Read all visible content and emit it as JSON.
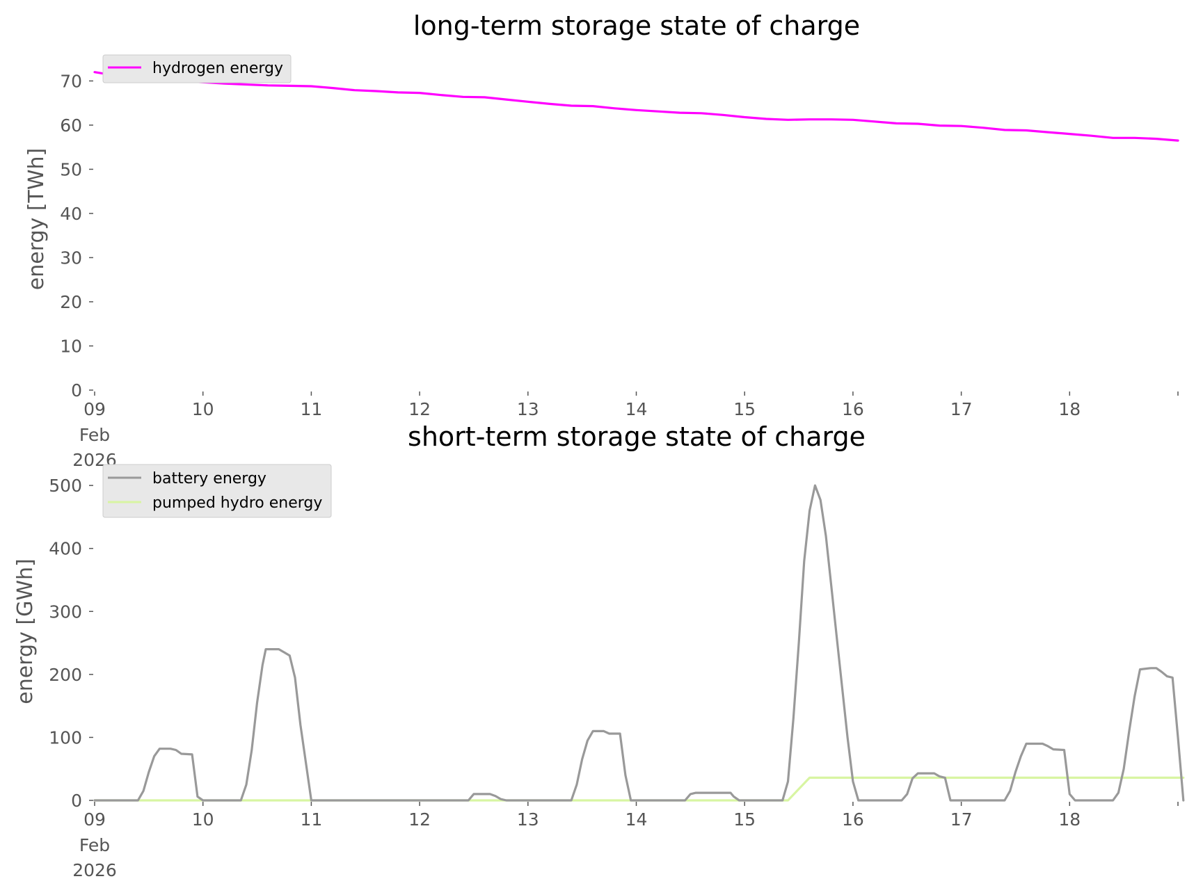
{
  "chart_data": [
    {
      "type": "line",
      "title": "long-term storage state of charge",
      "ylabel": "energy [TWh]",
      "xlabel": "",
      "x_ticks": [
        {
          "day": 9,
          "label": "09",
          "month_label": "Feb",
          "year_label": "2026"
        },
        {
          "day": 10,
          "label": "10"
        },
        {
          "day": 11,
          "label": "11"
        },
        {
          "day": 12,
          "label": "12"
        },
        {
          "day": 13,
          "label": "13"
        },
        {
          "day": 14,
          "label": "14"
        },
        {
          "day": 15,
          "label": "15"
        },
        {
          "day": 16,
          "label": "16"
        },
        {
          "day": 17,
          "label": "17"
        },
        {
          "day": 18,
          "label": "18"
        }
      ],
      "xlim_days": [
        9,
        19
      ],
      "ylim": [
        0,
        74
      ],
      "y_ticks": [
        0,
        10,
        20,
        30,
        40,
        50,
        60,
        70
      ],
      "legend_position": "upper left",
      "grid": false,
      "series": [
        {
          "name": "hydrogen energy",
          "color": "#ff00ff",
          "points": [
            [
              9.0,
              72.0
            ],
            [
              9.2,
              71.2
            ],
            [
              9.4,
              70.7
            ],
            [
              9.6,
              70.4
            ],
            [
              9.8,
              70.0
            ],
            [
              10.0,
              69.7
            ],
            [
              10.2,
              69.4
            ],
            [
              10.4,
              69.2
            ],
            [
              10.6,
              69.0
            ],
            [
              10.8,
              68.9
            ],
            [
              11.0,
              68.8
            ],
            [
              11.2,
              68.4
            ],
            [
              11.4,
              67.9
            ],
            [
              11.6,
              67.7
            ],
            [
              11.8,
              67.4
            ],
            [
              12.0,
              67.3
            ],
            [
              12.2,
              66.8
            ],
            [
              12.4,
              66.4
            ],
            [
              12.6,
              66.3
            ],
            [
              12.8,
              65.8
            ],
            [
              13.0,
              65.3
            ],
            [
              13.2,
              64.8
            ],
            [
              13.4,
              64.4
            ],
            [
              13.6,
              64.3
            ],
            [
              13.8,
              63.8
            ],
            [
              14.0,
              63.4
            ],
            [
              14.2,
              63.1
            ],
            [
              14.4,
              62.8
            ],
            [
              14.6,
              62.7
            ],
            [
              14.8,
              62.3
            ],
            [
              15.0,
              61.8
            ],
            [
              15.2,
              61.4
            ],
            [
              15.4,
              61.2
            ],
            [
              15.6,
              61.3
            ],
            [
              15.8,
              61.3
            ],
            [
              16.0,
              61.2
            ],
            [
              16.2,
              60.8
            ],
            [
              16.4,
              60.4
            ],
            [
              16.6,
              60.3
            ],
            [
              16.8,
              59.9
            ],
            [
              17.0,
              59.8
            ],
            [
              17.2,
              59.4
            ],
            [
              17.4,
              58.9
            ],
            [
              17.6,
              58.8
            ],
            [
              17.8,
              58.4
            ],
            [
              18.0,
              58.0
            ],
            [
              18.2,
              57.6
            ],
            [
              18.4,
              57.1
            ],
            [
              18.6,
              57.1
            ],
            [
              18.8,
              56.9
            ],
            [
              19.0,
              56.5
            ]
          ]
        }
      ]
    },
    {
      "type": "line",
      "title": "short-term storage state of charge",
      "ylabel": "energy [GWh]",
      "xlabel": "",
      "x_ticks": [
        {
          "day": 9,
          "label": "09",
          "month_label": "Feb",
          "year_label": "2026"
        },
        {
          "day": 10,
          "label": "10"
        },
        {
          "day": 11,
          "label": "11"
        },
        {
          "day": 12,
          "label": "12"
        },
        {
          "day": 13,
          "label": "13"
        },
        {
          "day": 14,
          "label": "14"
        },
        {
          "day": 15,
          "label": "15"
        },
        {
          "day": 16,
          "label": "16"
        },
        {
          "day": 17,
          "label": "17"
        },
        {
          "day": 18,
          "label": "18"
        }
      ],
      "xlim_days": [
        9,
        19
      ],
      "ylim": [
        0,
        520
      ],
      "y_ticks": [
        0,
        100,
        200,
        300,
        400,
        500
      ],
      "legend_position": "upper left",
      "grid": false,
      "series": [
        {
          "name": "battery energy",
          "color": "#999999",
          "points": [
            [
              9.0,
              0
            ],
            [
              9.4,
              0
            ],
            [
              9.45,
              15
            ],
            [
              9.5,
              45
            ],
            [
              9.55,
              70
            ],
            [
              9.6,
              82
            ],
            [
              9.7,
              82
            ],
            [
              9.75,
              80
            ],
            [
              9.8,
              74
            ],
            [
              9.9,
              73
            ],
            [
              9.95,
              6
            ],
            [
              10.0,
              0
            ],
            [
              10.35,
              0
            ],
            [
              10.4,
              25
            ],
            [
              10.45,
              80
            ],
            [
              10.5,
              155
            ],
            [
              10.55,
              215
            ],
            [
              10.58,
              240
            ],
            [
              10.7,
              240
            ],
            [
              10.75,
              235
            ],
            [
              10.8,
              230
            ],
            [
              10.85,
              195
            ],
            [
              10.9,
              120
            ],
            [
              10.95,
              60
            ],
            [
              11.0,
              0
            ],
            [
              12.45,
              0
            ],
            [
              12.5,
              10
            ],
            [
              12.65,
              10
            ],
            [
              12.7,
              7
            ],
            [
              12.75,
              2
            ],
            [
              12.8,
              0
            ],
            [
              13.4,
              0
            ],
            [
              13.45,
              25
            ],
            [
              13.5,
              65
            ],
            [
              13.55,
              95
            ],
            [
              13.6,
              110
            ],
            [
              13.7,
              110
            ],
            [
              13.75,
              106
            ],
            [
              13.85,
              106
            ],
            [
              13.9,
              40
            ],
            [
              13.95,
              0
            ],
            [
              14.45,
              0
            ],
            [
              14.5,
              10
            ],
            [
              14.55,
              12
            ],
            [
              14.87,
              12
            ],
            [
              14.9,
              6
            ],
            [
              14.95,
              0
            ],
            [
              15.35,
              0
            ],
            [
              15.4,
              30
            ],
            [
              15.45,
              130
            ],
            [
              15.5,
              250
            ],
            [
              15.55,
              380
            ],
            [
              15.6,
              460
            ],
            [
              15.65,
              500
            ],
            [
              15.7,
              477
            ],
            [
              15.75,
              420
            ],
            [
              15.8,
              340
            ],
            [
              15.85,
              260
            ],
            [
              15.9,
              180
            ],
            [
              15.95,
              100
            ],
            [
              16.0,
              30
            ],
            [
              16.05,
              0
            ],
            [
              16.45,
              0
            ],
            [
              16.5,
              10
            ],
            [
              16.55,
              35
            ],
            [
              16.6,
              43
            ],
            [
              16.75,
              43
            ],
            [
              16.8,
              38
            ],
            [
              16.85,
              36
            ],
            [
              16.9,
              0
            ],
            [
              17.4,
              0
            ],
            [
              17.45,
              15
            ],
            [
              17.5,
              45
            ],
            [
              17.55,
              70
            ],
            [
              17.6,
              90
            ],
            [
              17.75,
              90
            ],
            [
              17.8,
              86
            ],
            [
              17.85,
              81
            ],
            [
              17.95,
              80
            ],
            [
              18.0,
              10
            ],
            [
              18.05,
              0
            ],
            [
              18.4,
              0
            ],
            [
              18.45,
              12
            ],
            [
              18.5,
              50
            ],
            [
              18.55,
              110
            ],
            [
              18.6,
              165
            ],
            [
              18.65,
              208
            ],
            [
              18.75,
              210
            ],
            [
              18.8,
              210
            ],
            [
              18.85,
              204
            ],
            [
              18.9,
              197
            ],
            [
              18.95,
              195
            ],
            [
              19.0,
              100
            ],
            [
              19.05,
              0
            ]
          ]
        },
        {
          "name": "pumped hydro energy",
          "color": "#d8f5a2",
          "points": [
            [
              9.0,
              0
            ],
            [
              15.4,
              0
            ],
            [
              15.6,
              36
            ],
            [
              19.05,
              36
            ]
          ]
        }
      ]
    }
  ]
}
